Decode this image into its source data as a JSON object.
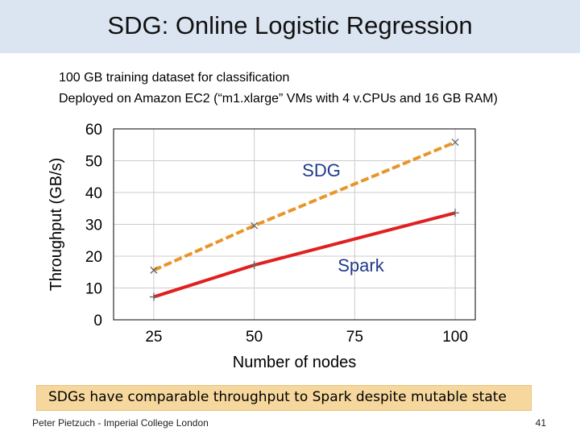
{
  "slide": {
    "title": "SDG: Online Logistic Regression",
    "bullets": [
      "100 GB training dataset for classification",
      "Deployed on Amazon EC2 (“m1.xlarge” VMs with 4 v.CPUs and 16 GB RAM)"
    ],
    "conclusion": "SDGs have comparable throughput to Spark despite mutable state",
    "footer_left": "Peter Pietzuch - Imperial College London",
    "page_number": "41",
    "title_bar_color": "#dbe5f1",
    "conclusion_box_color": "#f6d79d"
  },
  "chart_data": {
    "type": "line",
    "xlabel": "Number of nodes",
    "ylabel": "Throughput (GB/s)",
    "x": [
      25,
      50,
      100
    ],
    "xticks": [
      25,
      50,
      75,
      100
    ],
    "yticks": [
      0,
      10,
      20,
      30,
      40,
      50,
      60
    ],
    "xlim": [
      15,
      105
    ],
    "ylim": [
      0,
      60
    ],
    "grid": true,
    "series": [
      {
        "name": "SDG",
        "values": [
          15.6,
          29.6,
          55.8
        ],
        "color": "#e8962a",
        "style": "dashed",
        "marker": "x"
      },
      {
        "name": "Spark",
        "values": [
          7.2,
          17.2,
          33.6
        ],
        "color": "#e02020",
        "style": "solid",
        "marker": "+"
      }
    ]
  }
}
